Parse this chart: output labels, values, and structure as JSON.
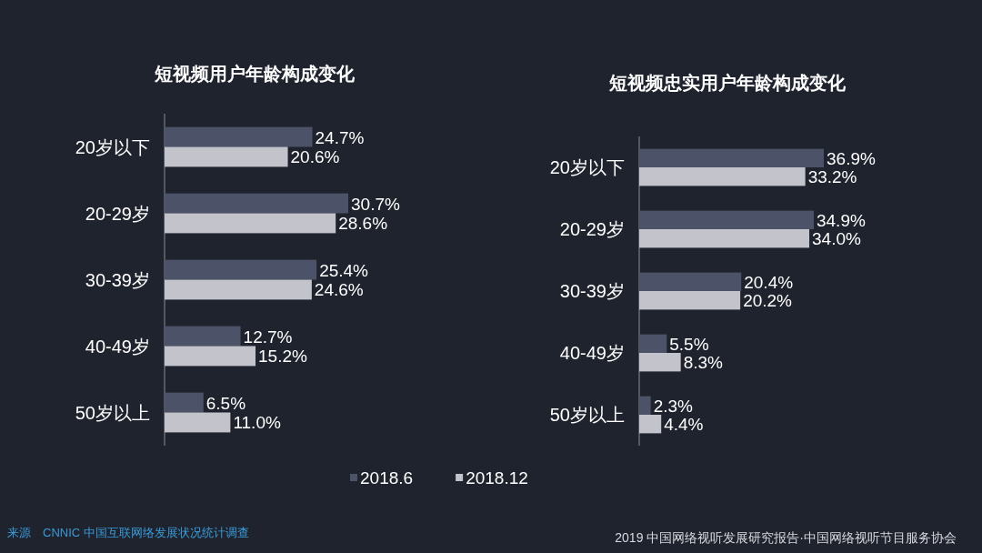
{
  "chart_data": [
    {
      "type": "bar",
      "orientation": "horizontal",
      "title": "短视频用户年龄构成变化",
      "categories": [
        "20岁以下",
        "20-29岁",
        "30-39岁",
        "40-49岁",
        "50岁以上"
      ],
      "series": [
        {
          "name": "2018.6",
          "color": "#4c5268",
          "values": [
            24.7,
            30.7,
            25.4,
            12.7,
            6.5
          ],
          "value_labels": [
            "24.7%",
            "30.7%",
            "25.4%",
            "12.7%",
            "6.5%"
          ]
        },
        {
          "name": "2018.12",
          "color": "#c3c3cc",
          "values": [
            20.6,
            28.6,
            24.6,
            15.2,
            11.0
          ],
          "value_labels": [
            "20.6%",
            "28.6%",
            "24.6%",
            "15.2%",
            "11.0%"
          ]
        }
      ],
      "legend": "bottom",
      "annotations": [
        "来源　CNNIC 中国互联网络发展状况统计调查"
      ]
    },
    {
      "type": "bar",
      "orientation": "horizontal",
      "title": "短视频忠实用户年龄构成变化",
      "categories": [
        "20岁以下",
        "20-29岁",
        "30-39岁",
        "40-49岁",
        "50岁以上"
      ],
      "series": [
        {
          "color": "#4c5268",
          "values": [
            36.9,
            34.9,
            20.4,
            5.5,
            2.3
          ],
          "value_labels": [
            "36.9%",
            "34.9%",
            "20.4%",
            "5.5%",
            "2.3%"
          ]
        },
        {
          "color": "#c3c3cc",
          "values": [
            33.2,
            34.0,
            20.2,
            8.3,
            4.4
          ],
          "value_labels": [
            "33.2%",
            "34.0%",
            "20.2%",
            "8.3%",
            "4.4%"
          ]
        }
      ],
      "annotations": [
        "2019 中国网络视听发展研究报告·中国网络视听节目服务协会"
      ]
    }
  ]
}
